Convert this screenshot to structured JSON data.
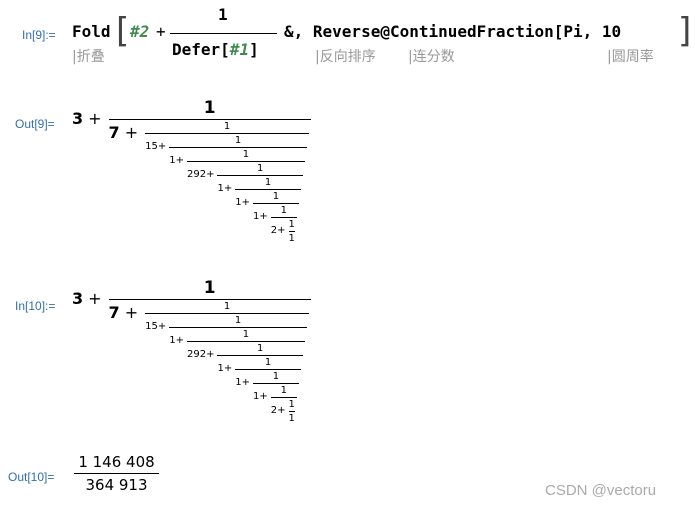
{
  "in9": {
    "label": "In[9]:=",
    "fold": "Fold",
    "open_bracket": "[",
    "slot2": "#2",
    "plus": "+",
    "numerator": "1",
    "defer": "Defer",
    "defer_open": "[",
    "slot1": "#1",
    "defer_close": "]",
    "rest": "&, Reverse@ContinuedFraction[Pi, 10",
    "close_bracket": "]"
  },
  "annotations": [
    "|折叠",
    "|反向排序",
    "|连分数",
    "|圆周率"
  ],
  "out9": {
    "label": "Out[9]=",
    "plus": "+",
    "terms": [
      "3",
      "7",
      "15",
      "1",
      "292",
      "1",
      "1",
      "1",
      "2",
      "1"
    ],
    "numerators": [
      "1",
      "1",
      "1",
      "1",
      "1",
      "1",
      "1",
      "1",
      "1"
    ]
  },
  "in10": {
    "label": "In[10]:=",
    "plus": "+",
    "terms": [
      "3",
      "7",
      "15",
      "1",
      "292",
      "1",
      "1",
      "1",
      "2",
      "1"
    ],
    "numerators": [
      "1",
      "1",
      "1",
      "1",
      "1",
      "1",
      "1",
      "1",
      "1"
    ]
  },
  "out10": {
    "label": "Out[10]=",
    "numerator": "1 146 408",
    "denominator": "364 913"
  },
  "watermark": "CSDN @vectoru"
}
